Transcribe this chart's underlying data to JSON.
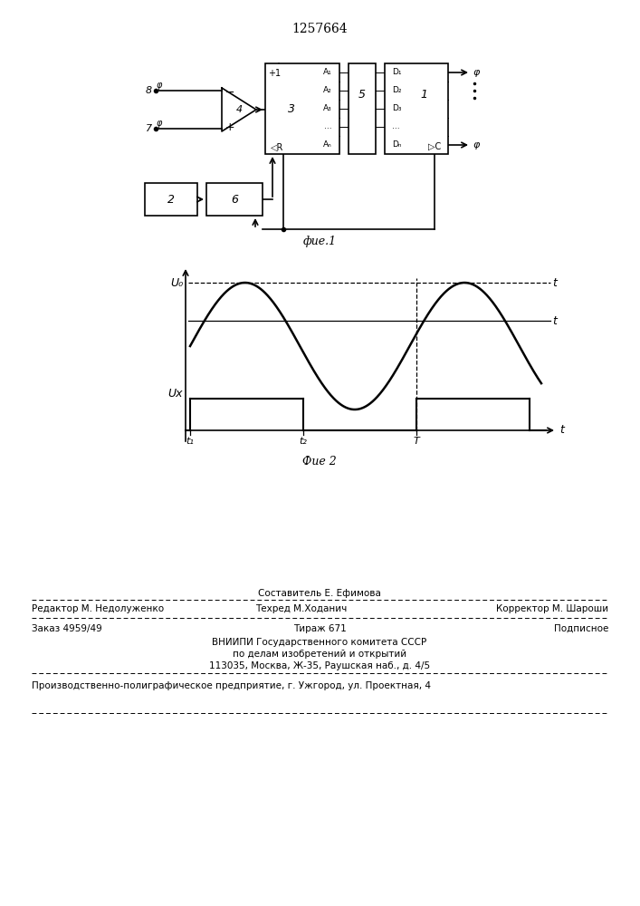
{
  "patent_number": "1257664",
  "bg_color": "#ffffff",
  "line_color": "#000000",
  "fig1_caption": "фие.1",
  "fig2_caption": "Фие 2",
  "footer_sestavitel": "Составитель Е. Ефимова",
  "footer_redaktor": "Редактор М. Недолуженко",
  "footer_tekhred": "Техред М.Ходанич",
  "footer_korrektor": "Корректор М. Шароши",
  "footer_zakaz": "Заказ 4959/49",
  "footer_tirazh": "Тираж 671",
  "footer_podpisnoe": "Подписное",
  "footer_org1": "ВНИИПИ Государственного комитета СССР",
  "footer_org2": "по делам изобретений и открытий",
  "footer_org3": "113035, Москва, Ж-35, Раушская наб., д. 4/5",
  "footer_prod": "Производственно-полиграфическое предприятие, г. Ужгород, ул. Проектная, 4"
}
